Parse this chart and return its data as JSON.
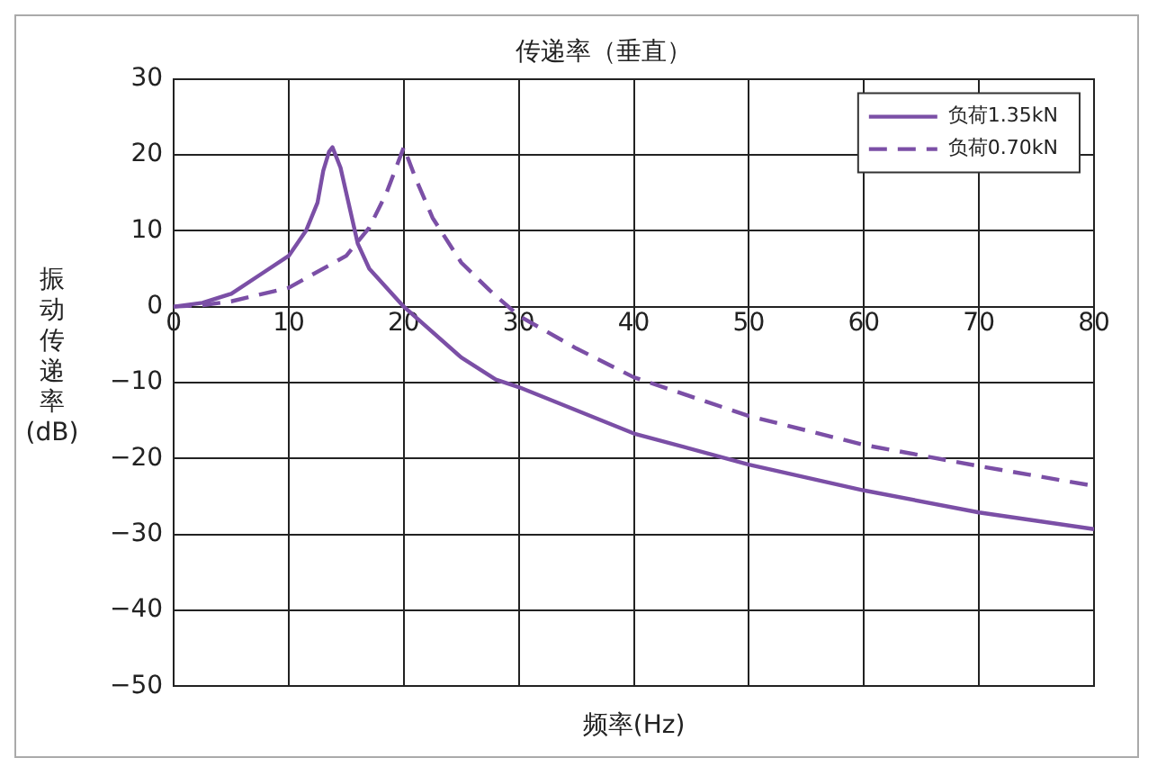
{
  "chart_data": {
    "type": "line",
    "title": "传递率（垂直）",
    "xlabel": "频率(Hz)",
    "ylabel": "振动传递率(dB)",
    "xlim": [
      0,
      80
    ],
    "xticks": [
      0,
      10,
      20,
      30,
      40,
      50,
      60,
      70,
      80
    ],
    "ylim": [
      -50,
      30
    ],
    "yticks": [
      30,
      20,
      10,
      0,
      {
        "value": -10,
        "label": "−10"
      },
      {
        "value": -20,
        "label": "−20"
      },
      {
        "value": -30,
        "label": "−30"
      },
      {
        "value": -40,
        "label": "−40"
      },
      {
        "value": -50,
        "label": "−50"
      }
    ],
    "grid": true,
    "legend": "top right",
    "marker": "none",
    "series": [
      {
        "name": "负荷1.35kN",
        "color": "#7b4fa6",
        "line_style": "solid",
        "x": [
          0,
          2.5,
          5,
          7.5,
          10,
          11.5,
          12.5,
          13,
          13.5,
          13.8,
          14.5,
          16,
          17,
          20,
          25,
          28,
          30,
          40,
          50,
          60,
          70,
          80
        ],
        "values": [
          0,
          0.5,
          1.7,
          4.2,
          6.7,
          10,
          13.7,
          17.9,
          20.4,
          21,
          18.3,
          8.3,
          5,
          0,
          -6.7,
          -9.6,
          -10.6,
          -16.7,
          -20.8,
          -24.2,
          -27.1,
          -29.3
        ]
      },
      {
        "name": "负荷0.70kN",
        "color": "#7b4fa6",
        "line_style": "dashed",
        "x": [
          0,
          2.5,
          5,
          10,
          15,
          17,
          18.5,
          20,
          21,
          22.5,
          25,
          27.5,
          30,
          35,
          40,
          50,
          60,
          70,
          80
        ],
        "values": [
          0,
          0.2,
          0.7,
          2.5,
          6.7,
          10.4,
          15,
          21,
          17,
          11.7,
          5.8,
          2.1,
          -1.2,
          -5.5,
          -9.3,
          -14.4,
          -18.2,
          -21,
          -23.6
        ]
      }
    ]
  }
}
